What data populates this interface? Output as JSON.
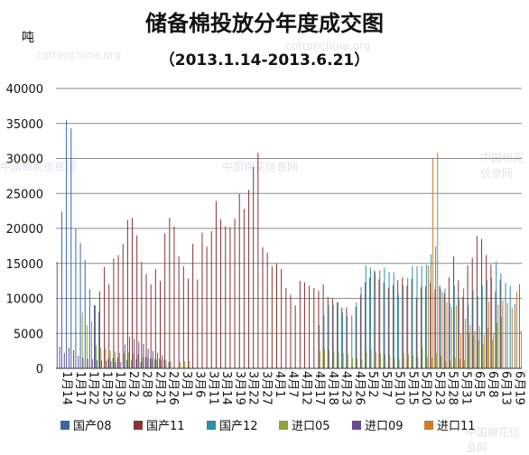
{
  "title": "储备棉投放分年度成交图",
  "subtitle": "（2013.1.14-2013.6.21）",
  "watermarks": [
    "cottonchina.org",
    "cottonchina.org",
    "中国棉花信息网",
    "中国棉花信息网",
    "中国棉花信息网",
    "中国棉花信息网"
  ],
  "colors": {
    "国产08": "#3c67a3",
    "国产11": "#8a3232",
    "国产12": "#2f8ea8",
    "进口05": "#8aa33a",
    "进口09": "#6a4a94",
    "进口11": "#d07a2e",
    "grid": "#8a8a8a"
  },
  "chart_data": {
    "type": "bar",
    "title": "储备棉投放分年度成交图",
    "subtitle": "（2013.1.14-2013.6.21）",
    "ylabel": "吨",
    "ylim": [
      0,
      40000
    ],
    "yticks": [
      0,
      5000,
      10000,
      15000,
      20000,
      25000,
      30000,
      35000,
      40000
    ],
    "grid": true,
    "legend_position": "bottom",
    "categories": [
      "1月14",
      "1月15",
      "1月16",
      "1月17",
      "1月18",
      "1月21",
      "1月22",
      "1月23",
      "1月24",
      "1月25",
      "1月28",
      "1月29",
      "1月30",
      "1月31",
      "2月1",
      "2月4",
      "2月5",
      "2月6",
      "2月7",
      "2月8",
      "2月20",
      "2月21",
      "2月22",
      "2月25",
      "2月26",
      "2月27",
      "2月28",
      "3月1",
      "3月4",
      "3月5",
      "3月6",
      "3月7",
      "3月8",
      "3月11",
      "3月12",
      "3月13",
      "3月14",
      "3月15",
      "3月18",
      "3月19",
      "3月20",
      "3月21",
      "3月22",
      "3月25",
      "3月26",
      "3月27",
      "3月28",
      "3月29",
      "4月1",
      "4月2",
      "4月3",
      "4月8",
      "4月9",
      "4月10",
      "4月11",
      "4月12",
      "4月15",
      "4月16",
      "4月17",
      "4月18",
      "4月19",
      "4月22",
      "4月23",
      "4月24",
      "4月25",
      "4月26",
      "5月2",
      "5月3",
      "5月6",
      "5月7",
      "5月8",
      "5月9",
      "5月10",
      "5月13",
      "5月14",
      "5月15",
      "5月16",
      "5月17",
      "5月20",
      "5月21",
      "5月22",
      "5月23",
      "5月24",
      "5月27",
      "5月28",
      "5月29",
      "5月30",
      "5月31",
      "6月3",
      "6月4",
      "6月5",
      "6月6",
      "6月7",
      "6月13",
      "6月14",
      "6月17",
      "6月18",
      "6月19",
      "6月20",
      "6月21"
    ],
    "xtick_labels": [
      "1月14",
      "1月17",
      "1月22",
      "1月25",
      "1月30",
      "2月2",
      "2月8",
      "2月21",
      "2月26",
      "3月1",
      "3月6",
      "3月11",
      "3月14",
      "3月19",
      "3月22",
      "3月27",
      "4月1",
      "4月7",
      "4月12",
      "4月17",
      "4月18",
      "4月23",
      "4月26",
      "5月2",
      "5月7",
      "5月10",
      "5月15",
      "5月20",
      "5月23",
      "5月28",
      "5月31",
      "6月5",
      "6月8",
      "6月13",
      "6月19"
    ],
    "series": [
      {
        "name": "国产08",
        "values": [
          15200,
          22400,
          35500,
          34300,
          20000,
          17900,
          15500,
          11300,
          9000,
          8100,
          0,
          1400,
          1500,
          1500,
          0,
          1200,
          1200,
          1300,
          900,
          1600,
          1400,
          1300,
          1400,
          1300,
          900,
          0,
          0,
          0,
          0,
          0,
          0,
          0,
          0,
          0,
          0,
          0,
          0,
          0,
          0,
          0,
          0,
          0,
          0,
          0,
          0,
          0,
          0,
          0,
          0,
          0,
          0,
          0,
          0,
          0,
          0,
          0,
          0,
          0,
          0,
          0,
          0,
          0,
          0,
          0,
          0,
          0,
          0,
          0,
          0,
          0,
          0,
          0,
          0,
          0,
          0,
          0,
          0,
          0,
          0,
          0,
          0,
          0,
          0,
          0,
          0,
          0,
          0,
          0,
          0,
          0,
          0,
          0,
          0,
          0,
          0,
          0,
          0,
          0,
          0,
          0
        ]
      },
      {
        "name": "国产11",
        "values": [
          0,
          0,
          0,
          0,
          0,
          0,
          0,
          0,
          9000,
          11000,
          14500,
          12000,
          15700,
          16200,
          17800,
          21200,
          21500,
          19000,
          15200,
          13500,
          12000,
          14200,
          12500,
          19300,
          21500,
          20300,
          16000,
          14600,
          12800,
          17800,
          12700,
          19400,
          17400,
          19600,
          23900,
          21300,
          20300,
          20200,
          21400,
          24900,
          22800,
          25500,
          28800,
          30800,
          17300,
          16500,
          14600,
          15000,
          14200,
          11500,
          10500,
          9000,
          12500,
          12300,
          11800,
          11500,
          11100,
          12000,
          10200,
          10000,
          9400,
          8700,
          8700,
          0,
          8800,
          10500,
          12300,
          13000,
          14000,
          12700,
          12200,
          11500,
          11900,
          12600,
          13000,
          11800,
          12800,
          10100,
          11600,
          11700,
          12200,
          11300,
          11800,
          10700,
          13000,
          16000,
          12600,
          10200,
          14700,
          15800,
          18900,
          18500,
          16200,
          14800,
          11000,
          12600,
          0,
          0,
          0,
          0
        ]
      },
      {
        "name": "国产12",
        "values": [
          0,
          0,
          0,
          0,
          0,
          0,
          0,
          0,
          0,
          0,
          0,
          0,
          0,
          0,
          0,
          0,
          0,
          0,
          0,
          0,
          0,
          0,
          0,
          0,
          0,
          0,
          0,
          0,
          0,
          0,
          0,
          0,
          0,
          0,
          0,
          0,
          0,
          0,
          0,
          0,
          0,
          0,
          0,
          0,
          0,
          0,
          0,
          0,
          0,
          0,
          0,
          0,
          0,
          0,
          0,
          0,
          6200,
          7600,
          9100,
          9100,
          9500,
          8000,
          7500,
          7600,
          9400,
          11600,
          14700,
          14400,
          13700,
          14000,
          14400,
          13800,
          13700,
          10500,
          11900,
          12900,
          14600,
          14600,
          14600,
          14800,
          16300,
          17400,
          11400,
          11400,
          9300,
          11800,
          9800,
          11400,
          9000,
          11200,
          10300,
          11800,
          12600,
          12900,
          15300,
          13600,
          12200,
          11800,
          9200,
          12000
        ]
      },
      {
        "name": "进口05",
        "values": [
          0,
          0,
          0,
          0,
          0,
          8000,
          6200,
          6700,
          3300,
          2900,
          2900,
          2500,
          2400,
          2200,
          2100,
          2300,
          2100,
          2000,
          1600,
          1500,
          1400,
          1200,
          1200,
          1100,
          1000,
          0,
          900,
          1000,
          1100,
          0,
          0,
          0,
          0,
          0,
          0,
          0,
          0,
          0,
          0,
          0,
          0,
          0,
          0,
          0,
          0,
          0,
          0,
          0,
          0,
          0,
          0,
          0,
          0,
          0,
          0,
          0,
          2500,
          2800,
          2600,
          2400,
          2300,
          2200,
          2100,
          1500,
          1400,
          1300,
          2500,
          2700,
          2400,
          2100,
          2000,
          1900,
          1500,
          1300,
          2200,
          2000,
          1800,
          1700,
          2900,
          1600,
          1500,
          2100,
          1800,
          1000,
          1100,
          1500,
          1300,
          1200,
          5100,
          4700,
          4000,
          3500,
          5800,
          4100,
          6500,
          7400,
          0,
          0,
          0,
          0
        ]
      },
      {
        "name": "进口09",
        "values": [
          3100,
          2200,
          3000,
          2600,
          1800,
          1500,
          1400,
          1300,
          1200,
          1100,
          1100,
          1000,
          900,
          900,
          3400,
          4500,
          4200,
          3800,
          3500,
          2800,
          2500,
          2200,
          1900,
          0,
          0,
          0,
          0,
          0,
          0,
          0,
          0,
          0,
          0,
          0,
          0,
          0,
          0,
          0,
          0,
          0,
          0,
          0,
          0,
          0,
          0,
          0,
          0,
          0,
          0,
          0,
          0,
          0,
          0,
          0,
          0,
          0,
          0,
          0,
          0,
          0,
          0,
          0,
          0,
          0,
          0,
          0,
          0,
          0,
          0,
          0,
          0,
          0,
          0,
          0,
          0,
          0,
          0,
          0,
          0,
          0,
          0,
          0,
          0,
          0,
          0,
          0,
          0,
          0,
          0,
          0,
          0,
          0,
          0,
          0,
          0,
          0,
          0,
          0,
          0,
          0
        ]
      },
      {
        "name": "进口11",
        "values": [
          0,
          0,
          0,
          0,
          0,
          0,
          0,
          0,
          0,
          0,
          0,
          0,
          0,
          0,
          0,
          0,
          0,
          0,
          0,
          0,
          0,
          0,
          0,
          0,
          0,
          0,
          0,
          0,
          0,
          0,
          0,
          0,
          0,
          0,
          0,
          0,
          0,
          0,
          0,
          0,
          0,
          0,
          0,
          0,
          0,
          0,
          0,
          0,
          0,
          0,
          0,
          0,
          0,
          0,
          0,
          0,
          0,
          0,
          0,
          0,
          0,
          0,
          0,
          0,
          0,
          0,
          0,
          0,
          0,
          0,
          0,
          0,
          0,
          0,
          0,
          0,
          0,
          0,
          0,
          14700,
          30000,
          30800,
          11000,
          9500,
          8800,
          9000,
          5000,
          7100,
          6200,
          5400,
          6000,
          4800,
          9600,
          5000,
          9100,
          9700,
          9300,
          8700,
          11000,
          5400
        ]
      }
    ]
  }
}
